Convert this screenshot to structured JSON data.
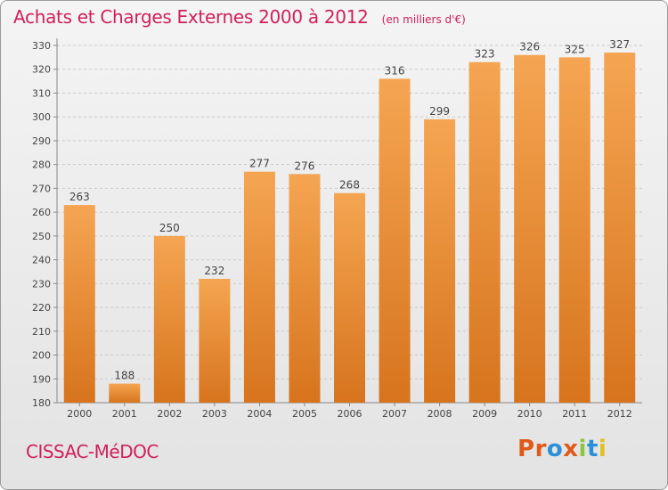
{
  "header": {
    "title": "Achats et Charges Externes 2000 à 2012",
    "subtitle": "(en milliers d'€)"
  },
  "footer": {
    "city": "CISSAC-MéDOC",
    "logo_letters": [
      "P",
      "r",
      "o",
      "x",
      "i",
      "t",
      "i"
    ],
    "logo_colors": [
      "#e05a1a",
      "#e05a1a",
      "#2a8fd6",
      "#e05a1a",
      "#8cc63f",
      "#2a8fd6",
      "#e0c020"
    ]
  },
  "colors": {
    "bar_top": "#f5a552",
    "bar_bottom": "#d7741d",
    "grid": "#c9c9c9",
    "axis_text": "#444444",
    "label_text": "#444444"
  },
  "chart_data": {
    "type": "bar",
    "categories": [
      "2000",
      "2001",
      "2002",
      "2003",
      "2004",
      "2005",
      "2006",
      "2007",
      "2008",
      "2009",
      "2010",
      "2011",
      "2012"
    ],
    "values": [
      263,
      188,
      250,
      232,
      277,
      276,
      268,
      316,
      299,
      323,
      326,
      325,
      327
    ],
    "title": "Achats et Charges Externes 2000 à 2012",
    "subtitle": "(en milliers d'€)",
    "xlabel": "",
    "ylabel": "",
    "ylim": [
      180,
      330
    ],
    "yticks": [
      180,
      190,
      200,
      210,
      220,
      230,
      240,
      250,
      260,
      270,
      280,
      290,
      300,
      310,
      320,
      330
    ],
    "grid": true,
    "legend": "none"
  }
}
